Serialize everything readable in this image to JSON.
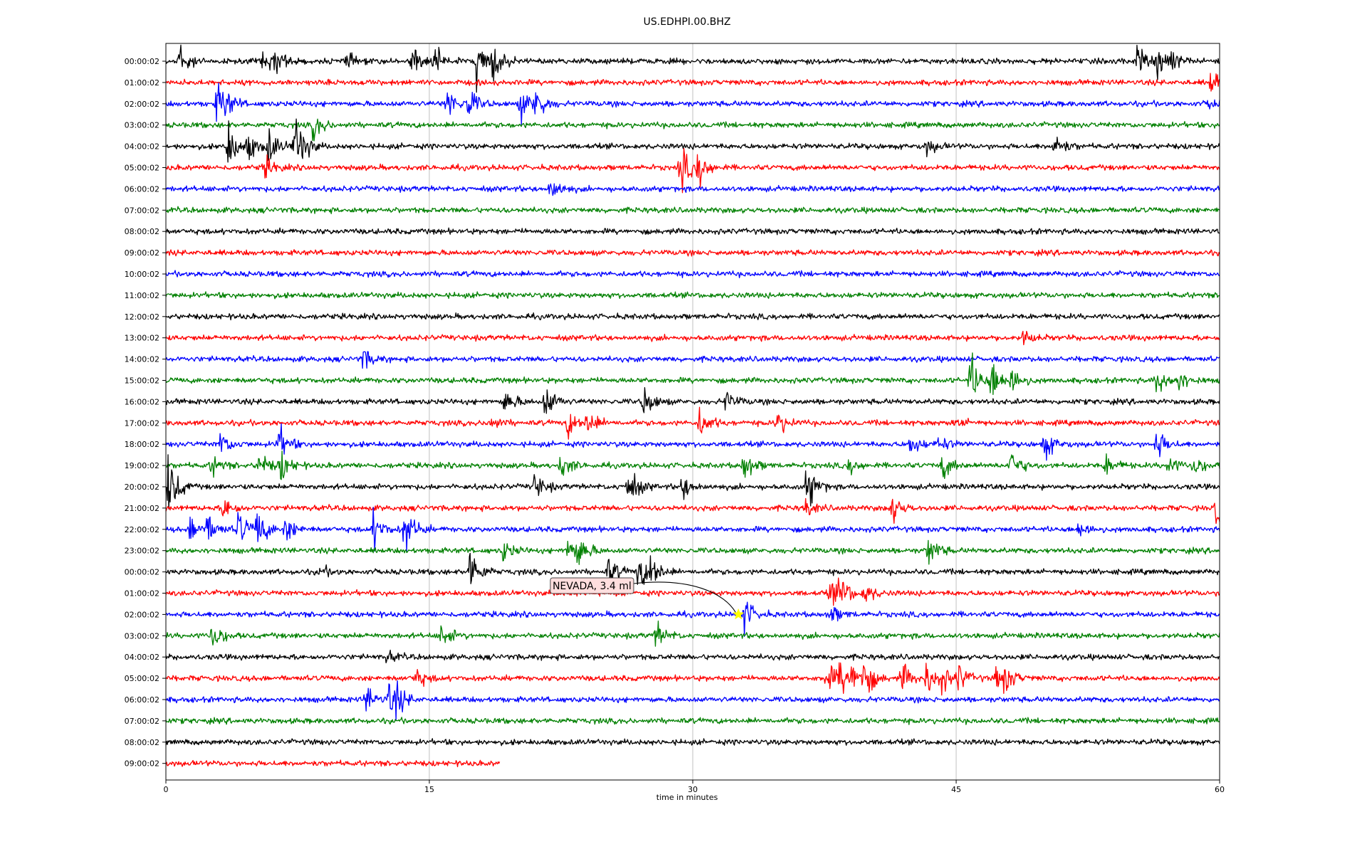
{
  "chart_data": {
    "type": "line",
    "title": "US.EDHPI.00.BHZ",
    "xlabel": "time in minutes",
    "xlim": [
      0,
      60
    ],
    "xticks": [
      0,
      15,
      30,
      45,
      60
    ],
    "grid_x": true,
    "trace_colors": [
      "#000000",
      "#ff0000",
      "#0000ff",
      "#008000"
    ],
    "rows": [
      {
        "label": "00:00:02",
        "end": 60,
        "events": [
          [
            0.7,
            0.8
          ],
          [
            5.5,
            0.4
          ],
          [
            6.2,
            0.5
          ],
          [
            10.2,
            0.3
          ],
          [
            14,
            0.6
          ],
          [
            15.3,
            0.5
          ],
          [
            17.7,
            1.0
          ],
          [
            18.6,
            0.7
          ],
          [
            55.3,
            0.6
          ],
          [
            56.4,
            0.5
          ],
          [
            57,
            0.5
          ]
        ]
      },
      {
        "label": "01:00:02",
        "end": 60,
        "events": [
          [
            59.5,
            0.5
          ]
        ]
      },
      {
        "label": "02:00:02",
        "end": 60,
        "events": [
          [
            2.9,
            0.7
          ],
          [
            3.3,
            0.4
          ],
          [
            16,
            0.6
          ],
          [
            17.2,
            0.6
          ],
          [
            20.2,
            0.6
          ],
          [
            21,
            0.7
          ],
          [
            59.4,
            0.2
          ]
        ]
      },
      {
        "label": "03:00:02",
        "end": 60,
        "events": [
          [
            8.4,
            0.5
          ]
        ]
      },
      {
        "label": "04:00:02",
        "end": 60,
        "events": [
          [
            3.5,
            1.0
          ],
          [
            4.7,
            0.5
          ],
          [
            5.8,
            0.7
          ],
          [
            7.3,
            0.8
          ],
          [
            7.5,
            0.5
          ],
          [
            43.3,
            0.3
          ],
          [
            50.6,
            0.5
          ]
        ]
      },
      {
        "label": "05:00:02",
        "end": 60,
        "events": [
          [
            5.6,
            0.4
          ],
          [
            29.3,
            0.9
          ],
          [
            30.3,
            0.7
          ]
        ]
      },
      {
        "label": "06:00:02",
        "end": 60,
        "events": [
          [
            21.9,
            0.5
          ]
        ]
      },
      {
        "label": "07:00:02",
        "end": 60,
        "events": []
      },
      {
        "label": "08:00:02",
        "end": 60,
        "events": []
      },
      {
        "label": "09:00:02",
        "end": 60,
        "events": []
      },
      {
        "label": "10:00:02",
        "end": 60,
        "events": []
      },
      {
        "label": "11:00:02",
        "end": 60,
        "events": []
      },
      {
        "label": "12:00:02",
        "end": 60,
        "events": []
      },
      {
        "label": "13:00:02",
        "end": 60,
        "events": [
          [
            48.8,
            0.3
          ]
        ]
      },
      {
        "label": "14:00:02",
        "end": 60,
        "events": [
          [
            11.2,
            0.4
          ]
        ]
      },
      {
        "label": "15:00:02",
        "end": 60,
        "events": [
          [
            45.8,
            1.0
          ],
          [
            47,
            0.8
          ],
          [
            48.1,
            0.6
          ],
          [
            56.4,
            0.5
          ],
          [
            57.6,
            0.5
          ]
        ]
      },
      {
        "label": "16:00:02",
        "end": 60,
        "events": [
          [
            19.3,
            0.5
          ],
          [
            21.6,
            0.7
          ],
          [
            27.2,
            0.6
          ],
          [
            31.9,
            0.4
          ]
        ]
      },
      {
        "label": "17:00:02",
        "end": 60,
        "events": [
          [
            18.4,
            0.3
          ],
          [
            22.9,
            0.5
          ],
          [
            24,
            0.5
          ],
          [
            30.4,
            0.6
          ],
          [
            34.8,
            0.5
          ],
          [
            45,
            0.2
          ]
        ]
      },
      {
        "label": "18:00:02",
        "end": 60,
        "events": [
          [
            3.1,
            0.5
          ],
          [
            6.4,
            0.7
          ],
          [
            42.4,
            0.4
          ],
          [
            44,
            0.3
          ],
          [
            50,
            0.6
          ],
          [
            56.4,
            0.6
          ]
        ]
      },
      {
        "label": "19:00:02",
        "end": 60,
        "events": [
          [
            2.6,
            0.4
          ],
          [
            5.3,
            0.5
          ],
          [
            6.5,
            0.6
          ],
          [
            22.5,
            0.5
          ],
          [
            32.9,
            0.6
          ],
          [
            38.9,
            0.3
          ],
          [
            44.2,
            0.5
          ],
          [
            48.1,
            0.6
          ],
          [
            53.5,
            0.4
          ],
          [
            57,
            0.4
          ],
          [
            58.5,
            0.4
          ]
        ]
      },
      {
        "label": "20:00:02",
        "end": 60,
        "events": [
          [
            0.1,
            1.4
          ],
          [
            21,
            0.5
          ],
          [
            26.3,
            0.8
          ],
          [
            29.4,
            0.5
          ],
          [
            36.5,
            0.9
          ]
        ]
      },
      {
        "label": "21:00:02",
        "end": 60,
        "events": [
          [
            3.3,
            0.5
          ],
          [
            36.4,
            0.3
          ],
          [
            41.3,
            0.6
          ],
          [
            59.8,
            0.6
          ]
        ]
      },
      {
        "label": "22:00:02",
        "end": 60,
        "events": [
          [
            1.4,
            0.6
          ],
          [
            2.4,
            0.5
          ],
          [
            4.1,
            0.7
          ],
          [
            5.2,
            0.8
          ],
          [
            6.8,
            0.5
          ],
          [
            11.8,
            0.7
          ],
          [
            13.6,
            1.0
          ],
          [
            52,
            0.4
          ]
        ]
      },
      {
        "label": "23:00:02",
        "end": 60,
        "events": [
          [
            19.2,
            0.4
          ],
          [
            22.9,
            0.6
          ],
          [
            23.5,
            0.5
          ],
          [
            43.4,
            0.6
          ]
        ]
      },
      {
        "label": "00:00:02",
        "end": 60,
        "events": [
          [
            8.8,
            0.2
          ],
          [
            17.3,
            0.9
          ],
          [
            25.2,
            0.5
          ],
          [
            26.9,
            0.7
          ],
          [
            27.6,
            0.6
          ]
        ]
      },
      {
        "label": "01:00:02",
        "end": 60,
        "events": [
          [
            37.8,
            0.5
          ],
          [
            38.4,
            0.6
          ],
          [
            39.8,
            0.4
          ]
        ]
      },
      {
        "label": "02:00:02",
        "end": 60,
        "events": [
          [
            32.9,
            0.7
          ],
          [
            37.8,
            0.4
          ]
        ]
      },
      {
        "label": "03:00:02",
        "end": 60,
        "events": [
          [
            2.6,
            0.6
          ],
          [
            15.7,
            0.5
          ],
          [
            27.9,
            0.5
          ]
        ]
      },
      {
        "label": "04:00:02",
        "end": 60,
        "events": [
          [
            12.6,
            0.2
          ]
        ]
      },
      {
        "label": "05:00:02",
        "end": 60,
        "events": [
          [
            14.2,
            0.4
          ],
          [
            37.6,
            0.6
          ],
          [
            38.3,
            0.6
          ],
          [
            39,
            0.6
          ],
          [
            39.7,
            0.8
          ],
          [
            41.9,
            0.6
          ],
          [
            43.3,
            0.6
          ],
          [
            44.1,
            0.5
          ],
          [
            45.1,
            0.5
          ],
          [
            47.3,
            0.5
          ],
          [
            47.8,
            0.4
          ]
        ]
      },
      {
        "label": "06:00:02",
        "end": 60,
        "events": [
          [
            11.4,
            0.5
          ],
          [
            12.7,
            0.6
          ],
          [
            13.1,
            0.4
          ]
        ]
      },
      {
        "label": "07:00:02",
        "end": 60,
        "events": []
      },
      {
        "label": "08:00:02",
        "end": 60,
        "events": []
      },
      {
        "label": "09:00:02",
        "end": 19.0,
        "events": []
      }
    ],
    "annotation": {
      "text": "NEVADA, 3.4 ml",
      "row": 26,
      "minute": 32.6,
      "marker": "star",
      "marker_color": "#ffff00"
    }
  }
}
